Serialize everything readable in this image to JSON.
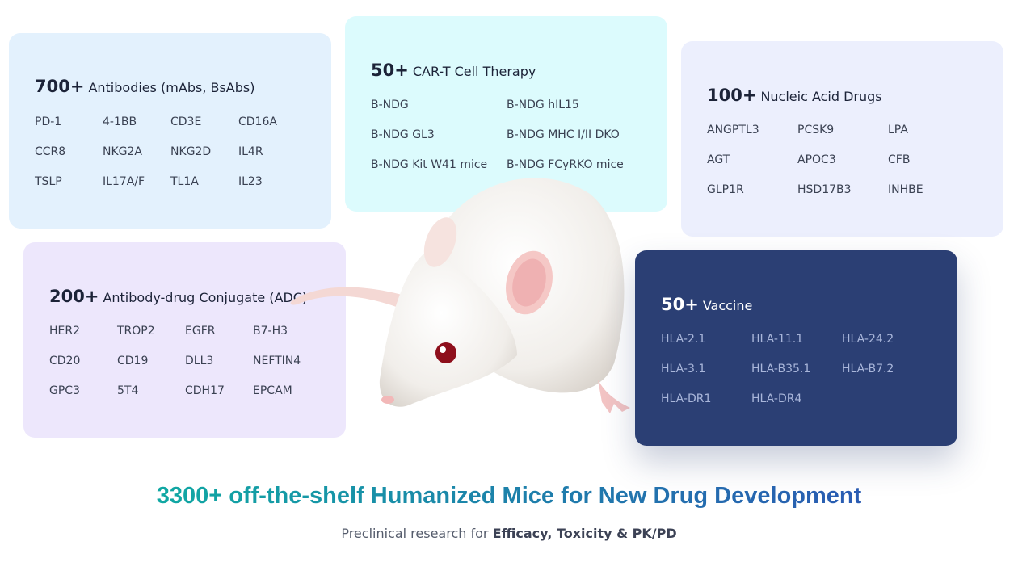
{
  "cards": [
    {
      "count": "700+",
      "title": "Antibodies (mAbs, BsAbs)",
      "items": [
        "PD-1",
        "4-1BB",
        "CD3E",
        "CD16A",
        "CCR8",
        "NKG2A",
        "NKG2D",
        "IL4R",
        "TSLP",
        "IL17A/F",
        "TL1A",
        "IL23"
      ]
    },
    {
      "count": "50+",
      "title": "CAR-T Cell Therapy",
      "items": [
        "B-NDG",
        "B-NDG hIL15",
        "B-NDG GL3",
        "B-NDG MHC I/II DKO",
        "B-NDG Kit W41 mice",
        "B-NDG FCyRKO mice"
      ]
    },
    {
      "count": "100+",
      "title": "Nucleic Acid Drugs",
      "items": [
        "ANGPTL3",
        "PCSK9",
        "LPA",
        "AGT",
        "APOC3",
        "CFB",
        "GLP1R",
        "HSD17B3",
        "INHBE"
      ]
    },
    {
      "count": "200+",
      "title": "Antibody-drug Conjugate (ADC)",
      "items": [
        "HER2",
        "TROP2",
        "EGFR",
        "B7-H3",
        "CD20",
        "CD19",
        "DLL3",
        "NEFTIN4",
        "GPC3",
        "5T4",
        "CDH17",
        "EPCAM"
      ]
    },
    {
      "count": "50+",
      "title": "Vaccine",
      "items": [
        "HLA-2.1",
        "HLA-11.1",
        "HLA-24.2",
        "HLA-3.1",
        "HLA-B35.1",
        "HLA-B7.2",
        "HLA-DR1",
        "HLA-DR4"
      ]
    }
  ],
  "headline": "3300+ off-the-shelf Humanized Mice for New Drug Development",
  "subtitle": {
    "text": "Preclinical research for",
    "emphasis": "Efficacy, Toxicity & PK/PD"
  }
}
